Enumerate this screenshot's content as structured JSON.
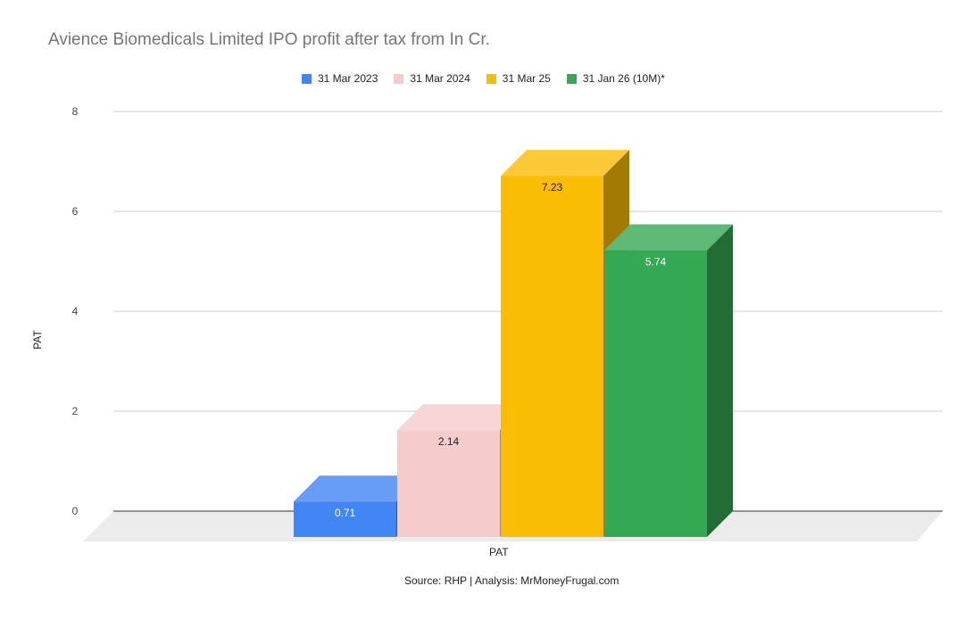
{
  "chart_data": {
    "type": "bar",
    "title": "Avience Biomedicals Limited IPO profit after tax from In Cr.",
    "ylabel": "PAT",
    "categories": [
      "PAT"
    ],
    "ylim": [
      0,
      8
    ],
    "yticks": [
      0,
      2,
      4,
      6,
      8
    ],
    "grid": true,
    "legend_position": "top",
    "three_d": true,
    "series": [
      {
        "name": "31 Mar 2023",
        "values": [
          0.71
        ],
        "color": "#4285f4"
      },
      {
        "name": "31 Mar 2024",
        "values": [
          2.14
        ],
        "color": "#f4cccc"
      },
      {
        "name": "31 Mar 25",
        "values": [
          7.23
        ],
        "color": "#fbbc04"
      },
      {
        "name": "31 Jan 26 (10M)*",
        "values": [
          5.74
        ],
        "color": "#34a853"
      }
    ]
  },
  "footer": {
    "source": "Source: RHP | Analysis: MrMoneyFrugal.com"
  }
}
